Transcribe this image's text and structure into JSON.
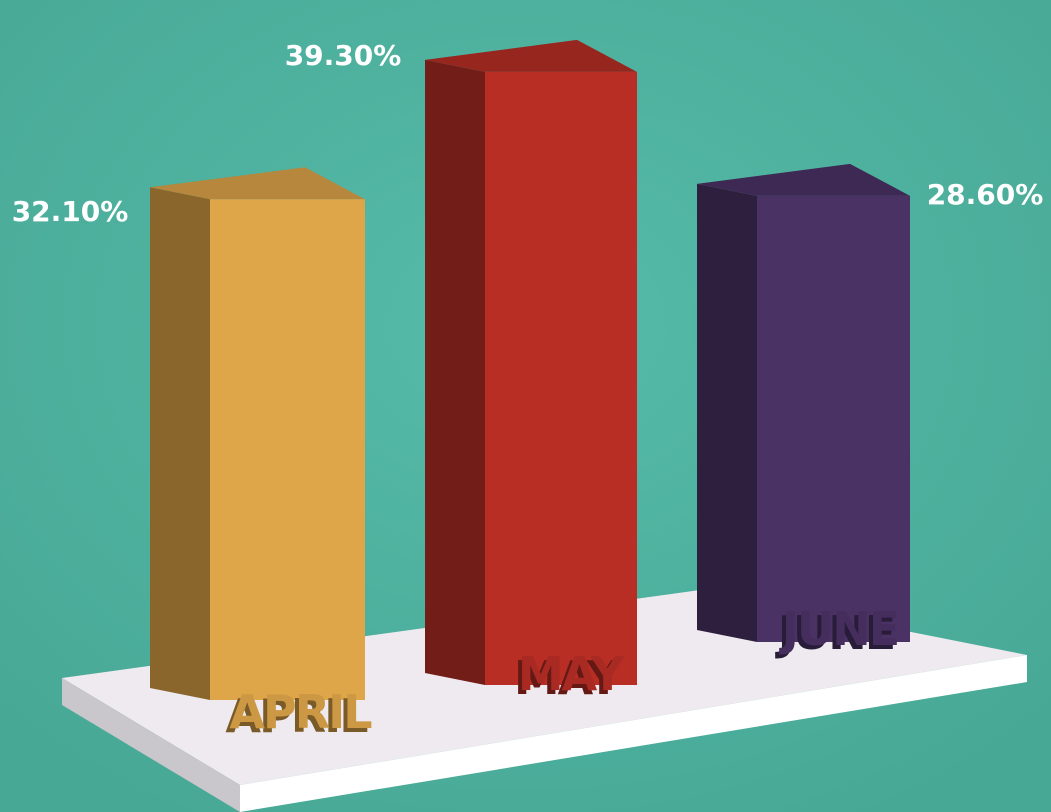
{
  "chart_data": {
    "type": "bar",
    "categories": [
      "APRIL",
      "MAY",
      "JUNE"
    ],
    "values": [
      32.1,
      39.3,
      28.6
    ],
    "value_labels": [
      "32.10%",
      "39.30%",
      "28.60%"
    ],
    "colors": [
      "#dea549",
      "#b82e25",
      "#4b3265"
    ]
  }
}
